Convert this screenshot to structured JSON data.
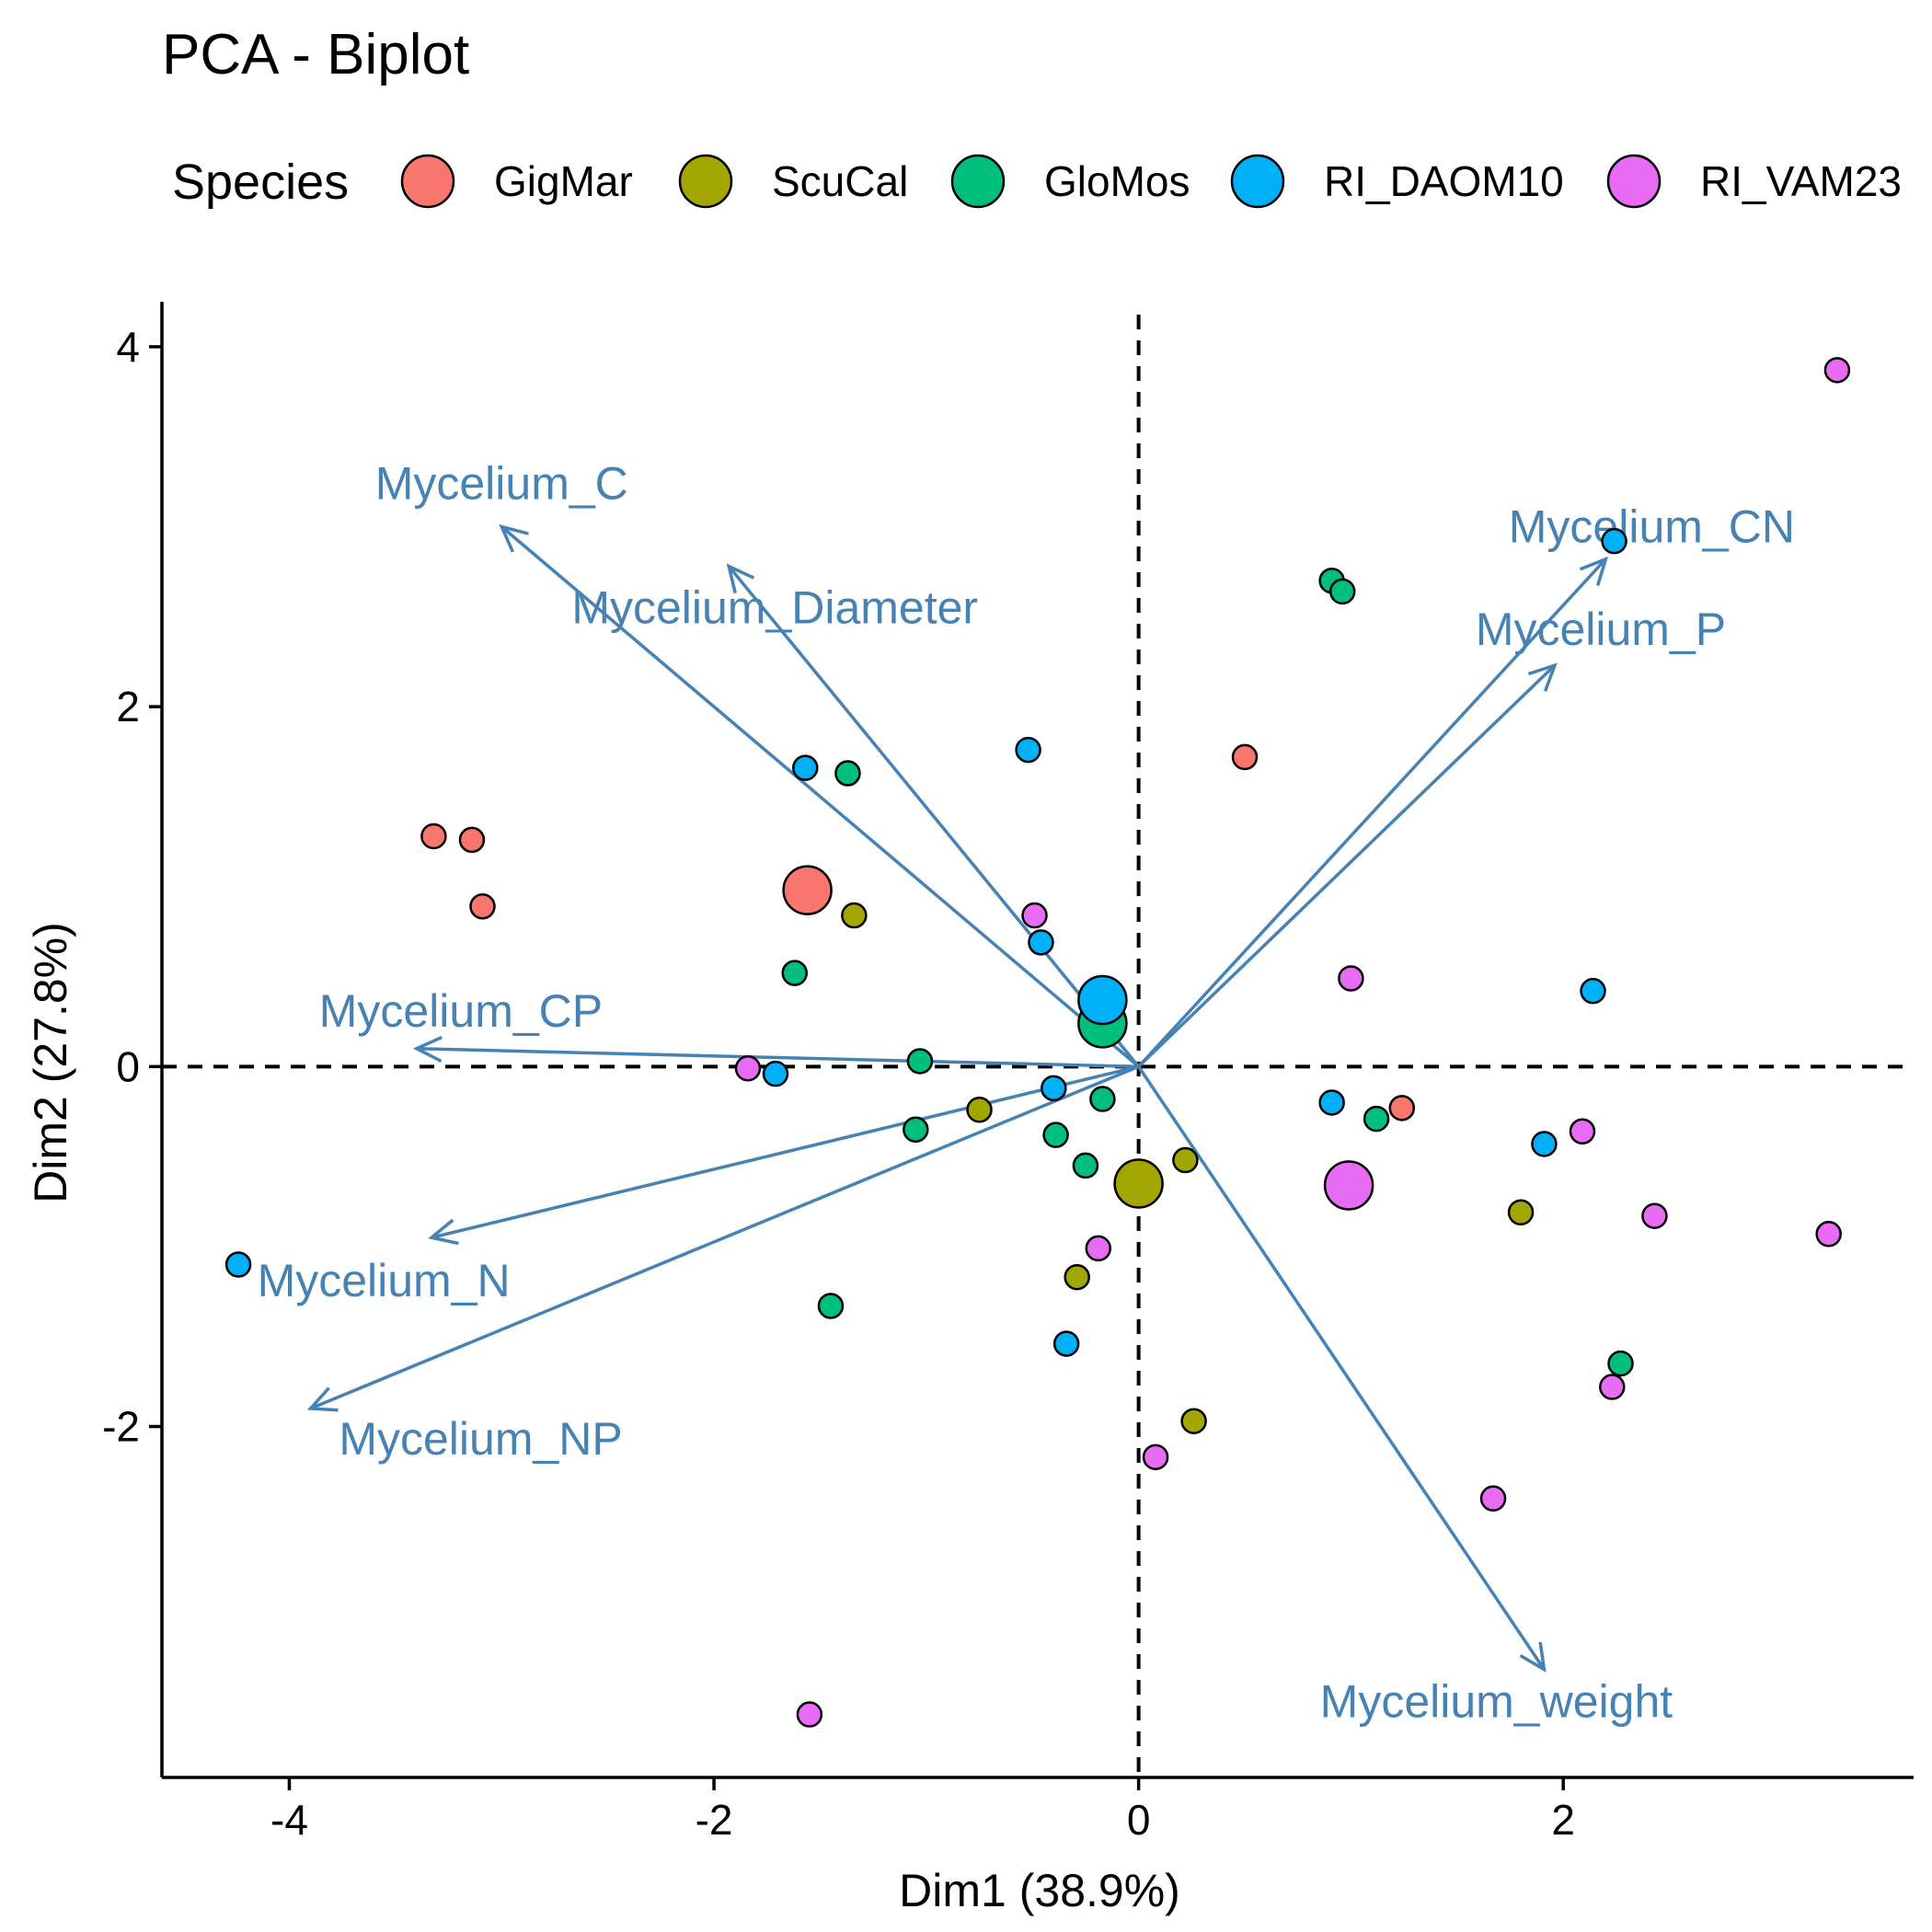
{
  "chart_data": {
    "type": "scatter",
    "title": "PCA - Biplot",
    "xlabel": "Dim1 (38.9%)",
    "ylabel": "Dim2 (27.8%)",
    "xlim": [
      -4.6,
      3.65
    ],
    "ylim": [
      -3.95,
      4.25
    ],
    "xticks": [
      -4,
      -2,
      0,
      2
    ],
    "yticks": [
      -2,
      0,
      2,
      4
    ],
    "reference_lines": {
      "x": 0,
      "y": 0,
      "style": "dashed"
    },
    "grid": false,
    "legend": {
      "title": "Species",
      "position": "top",
      "items": [
        {
          "name": "GigMar",
          "color": "#F8766D"
        },
        {
          "name": "ScuCal",
          "color": "#A3A500"
        },
        {
          "name": "GloMos",
          "color": "#00BF7D"
        },
        {
          "name": "RI_DAOM10",
          "color": "#00B0F6"
        },
        {
          "name": "RI_VAM23",
          "color": "#E76BF3"
        }
      ]
    },
    "series": [
      {
        "name": "GigMar",
        "color": "#F8766D",
        "points": [
          [
            -3.32,
            1.28
          ],
          [
            -3.14,
            1.26
          ],
          [
            -3.09,
            0.89
          ],
          [
            0.5,
            1.72
          ],
          [
            1.24,
            -0.23
          ]
        ],
        "centroid": [
          -1.56,
          0.98
        ]
      },
      {
        "name": "ScuCal",
        "color": "#A3A500",
        "points": [
          [
            -1.34,
            0.84
          ],
          [
            -0.75,
            -0.24
          ],
          [
            0.22,
            -0.52
          ],
          [
            -0.29,
            -1.17
          ],
          [
            0.26,
            -1.97
          ],
          [
            1.8,
            -0.81
          ]
        ],
        "centroid": [
          0.0,
          -0.65
        ]
      },
      {
        "name": "GloMos",
        "color": "#00BF7D",
        "points": [
          [
            -1.37,
            1.63
          ],
          [
            -1.62,
            0.52
          ],
          [
            -1.03,
            0.03
          ],
          [
            -1.05,
            -0.35
          ],
          [
            -0.39,
            -0.38
          ],
          [
            -0.25,
            -0.55
          ],
          [
            -0.17,
            -0.18
          ],
          [
            -1.45,
            -1.33
          ],
          [
            0.91,
            2.7
          ],
          [
            0.96,
            2.64
          ],
          [
            1.12,
            -0.29
          ],
          [
            2.27,
            -1.65
          ]
        ],
        "centroid": [
          -0.17,
          0.24
        ]
      },
      {
        "name": "RI_DAOM10",
        "color": "#00B0F6",
        "points": [
          [
            -1.57,
            1.66
          ],
          [
            -0.52,
            1.76
          ],
          [
            -0.46,
            0.69
          ],
          [
            -1.71,
            -0.04
          ],
          [
            -0.4,
            -0.12
          ],
          [
            -0.34,
            -1.54
          ],
          [
            -4.24,
            -1.1
          ],
          [
            0.91,
            -0.2
          ],
          [
            1.91,
            -0.43
          ],
          [
            2.14,
            0.42
          ],
          [
            2.24,
            2.92
          ]
        ],
        "centroid": [
          -0.17,
          0.37
        ]
      },
      {
        "name": "RI_VAM23",
        "color": "#E76BF3",
        "points": [
          [
            -0.49,
            0.84
          ],
          [
            -1.84,
            -0.01
          ],
          [
            -0.19,
            -1.01
          ],
          [
            0.08,
            -2.17
          ],
          [
            -1.55,
            -3.6
          ],
          [
            1.0,
            0.49
          ],
          [
            2.09,
            -0.36
          ],
          [
            2.43,
            -0.83
          ],
          [
            2.23,
            -1.78
          ],
          [
            1.67,
            -2.4
          ],
          [
            3.25,
            -0.93
          ],
          [
            3.29,
            3.87
          ]
        ],
        "centroid": [
          0.99,
          -0.66
        ]
      }
    ],
    "variables": [
      {
        "name": "Mycelium_C",
        "x": -3.0,
        "y": 3.0
      },
      {
        "name": "Mycelium_Diameter",
        "x": -1.93,
        "y": 2.78
      },
      {
        "name": "Mycelium_CN",
        "x": 2.2,
        "y": 2.82
      },
      {
        "name": "Mycelium_P",
        "x": 1.96,
        "y": 2.23
      },
      {
        "name": "Mycelium_CP",
        "x": -3.4,
        "y": 0.1
      },
      {
        "name": "Mycelium_N",
        "x": -3.33,
        "y": -0.95
      },
      {
        "name": "Mycelium_NP",
        "x": -3.9,
        "y": -1.9
      },
      {
        "name": "Mycelium_weight",
        "x": 1.91,
        "y": -3.35
      }
    ],
    "variable_color": "#4682B4"
  }
}
